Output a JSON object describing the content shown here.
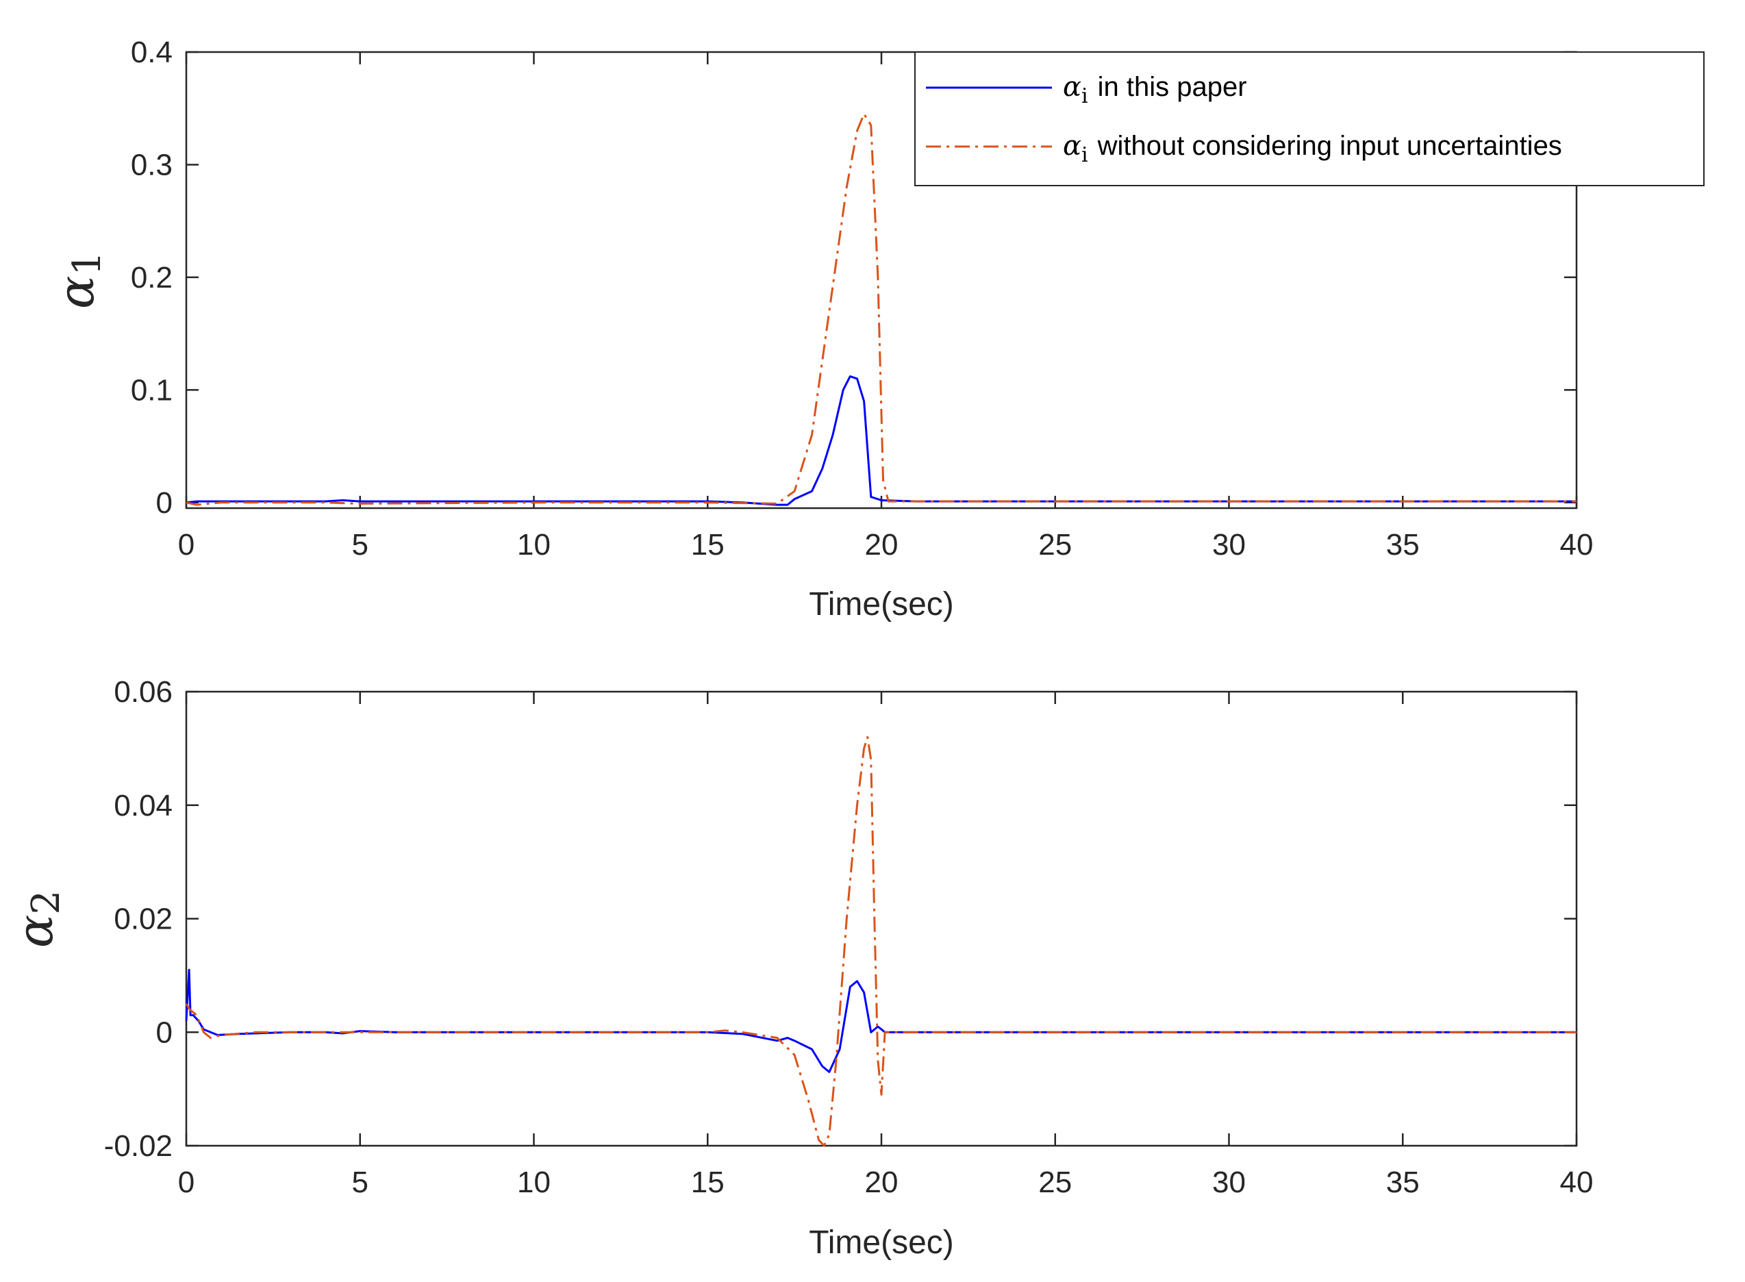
{
  "chart_data": [
    {
      "type": "line",
      "ylabel_symbol": "α",
      "ylabel_sub": "1",
      "xlabel": "Time(sec)",
      "xlim": [
        0,
        40
      ],
      "ylim": [
        -0.005,
        0.4
      ],
      "xticks": [
        0,
        5,
        10,
        15,
        20,
        25,
        30,
        35,
        40
      ],
      "xtick_labels": [
        "0",
        "5",
        "10",
        "15",
        "20",
        "25",
        "30",
        "35",
        "40"
      ],
      "yticks": [
        0,
        0.1,
        0.2,
        0.3,
        0.4
      ],
      "ytick_labels": [
        "0",
        "0.1",
        "0.2",
        "0.3",
        "0.4"
      ],
      "legend": {
        "position": "top-right",
        "entries": [
          {
            "symbol": "α",
            "sub": "i",
            "text": "in this paper"
          },
          {
            "symbol": "α",
            "sub": "i",
            "text": "without considering input uncertainties"
          }
        ]
      },
      "series": [
        {
          "color": "#0000ff",
          "dash": "solid",
          "x": [
            0,
            0.3,
            1,
            3,
            4,
            4.5,
            5,
            6,
            10,
            15,
            16,
            17,
            17.3,
            17.5,
            18,
            18.3,
            18.6,
            18.9,
            19.1,
            19.3,
            19.5,
            19.7,
            20,
            21,
            30,
            40
          ],
          "y": [
            0,
            0.001,
            0.001,
            0.001,
            0.001,
            0.002,
            0.001,
            0.001,
            0.001,
            0.001,
            0,
            -0.002,
            -0.002,
            0.003,
            0.01,
            0.03,
            0.06,
            0.1,
            0.112,
            0.11,
            0.09,
            0.005,
            0.002,
            0.001,
            0.001,
            0.001
          ]
        },
        {
          "color": "#d95319",
          "dash": "dashdot",
          "x": [
            0,
            0.3,
            1,
            4,
            5,
            10,
            15,
            17,
            17.5,
            18,
            18.5,
            19,
            19.3,
            19.5,
            19.7,
            19.9,
            20.05,
            20.2,
            21,
            30,
            40
          ],
          "y": [
            0,
            -0.002,
            0,
            0,
            -0.001,
            0,
            0,
            -0.001,
            0.01,
            0.06,
            0.17,
            0.28,
            0.33,
            0.345,
            0.335,
            0.2,
            0.02,
            0.001,
            0.001,
            0.001,
            0.001
          ]
        }
      ]
    },
    {
      "type": "line",
      "ylabel_symbol": "α",
      "ylabel_sub": "2",
      "xlabel": "Time(sec)",
      "xlim": [
        0,
        40
      ],
      "ylim": [
        -0.02,
        0.06
      ],
      "xticks": [
        0,
        5,
        10,
        15,
        20,
        25,
        30,
        35,
        40
      ],
      "xtick_labels": [
        "0",
        "5",
        "10",
        "15",
        "20",
        "25",
        "30",
        "35",
        "40"
      ],
      "yticks": [
        -0.02,
        0,
        0.02,
        0.04,
        0.06
      ],
      "ytick_labels": [
        "-0.02",
        "0",
        "0.02",
        "0.04",
        "0.06"
      ],
      "series": [
        {
          "color": "#0000ff",
          "dash": "solid",
          "x": [
            0,
            0.08,
            0.12,
            0.2,
            0.35,
            0.5,
            0.9,
            1.5,
            3,
            4,
            4.5,
            5,
            6,
            10,
            15,
            16,
            17,
            17.3,
            17.5,
            18,
            18.3,
            18.5,
            18.8,
            19.1,
            19.3,
            19.5,
            19.7,
            19.9,
            20,
            20.1,
            21,
            30,
            40
          ],
          "y": [
            0.002,
            0.011,
            0.003,
            0.003,
            0.002,
            0.0005,
            -0.0005,
            -0.0003,
            0,
            0,
            -0.0002,
            0.0002,
            0,
            0,
            0,
            -0.0003,
            -0.0015,
            -0.001,
            -0.0015,
            -0.003,
            -0.006,
            -0.007,
            -0.003,
            0.008,
            0.009,
            0.007,
            0,
            0.001,
            0.0005,
            0,
            0,
            0,
            0
          ]
        },
        {
          "color": "#d95319",
          "dash": "dashdot",
          "x": [
            0,
            0.1,
            0.3,
            0.5,
            0.7,
            1,
            2,
            4,
            10,
            15,
            15.5,
            16,
            16.5,
            17,
            17.5,
            17.9,
            18.2,
            18.35,
            18.5,
            18.7,
            19,
            19.3,
            19.5,
            19.6,
            19.7,
            19.8,
            19.9,
            20,
            20.1,
            21,
            40
          ],
          "y": [
            0.005,
            0.004,
            0.003,
            0,
            -0.001,
            -0.0005,
            0,
            0,
            0,
            0,
            0.0003,
            0,
            -0.0005,
            -0.001,
            -0.004,
            -0.012,
            -0.019,
            -0.02,
            -0.018,
            -0.005,
            0.02,
            0.04,
            0.05,
            0.052,
            0.048,
            0.02,
            -0.005,
            -0.011,
            0,
            0,
            0
          ]
        }
      ]
    }
  ]
}
